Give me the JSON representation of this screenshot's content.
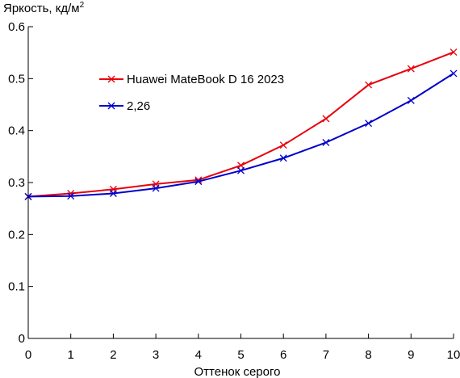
{
  "chart_data": {
    "type": "line",
    "ylabel_main": "Яркость, кд/м",
    "ylabel_sup": "2",
    "xlabel": "Оттенок серого",
    "x": [
      0,
      1,
      2,
      3,
      4,
      5,
      6,
      7,
      8,
      9,
      10
    ],
    "xlim": [
      0,
      10
    ],
    "ylim": [
      0,
      0.6
    ],
    "x_ticks": [
      "0",
      "1",
      "2",
      "3",
      "4",
      "5",
      "6",
      "7",
      "8",
      "9",
      "10"
    ],
    "y_ticks": [
      {
        "value": 0,
        "label": "0"
      },
      {
        "value": 0.1,
        "label": "0.1"
      },
      {
        "value": 0.2,
        "label": "0.2"
      },
      {
        "value": 0.3,
        "label": "0.3"
      },
      {
        "value": 0.4,
        "label": "0.4"
      },
      {
        "value": 0.5,
        "label": "0.5"
      },
      {
        "value": 0.6,
        "label": "0.6"
      }
    ],
    "grid": false,
    "legend_position": "upper-left",
    "series": [
      {
        "name": "Huawei MateBook D 16 2023",
        "color": "#e8000b",
        "marker": "x",
        "values": [
          0.273,
          0.279,
          0.287,
          0.297,
          0.305,
          0.333,
          0.372,
          0.423,
          0.488,
          0.519,
          0.551
        ]
      },
      {
        "name": "2,26",
        "color": "#0000cc",
        "marker": "x",
        "values": [
          0.273,
          0.274,
          0.279,
          0.289,
          0.302,
          0.323,
          0.347,
          0.377,
          0.414,
          0.458,
          0.51
        ]
      }
    ]
  }
}
